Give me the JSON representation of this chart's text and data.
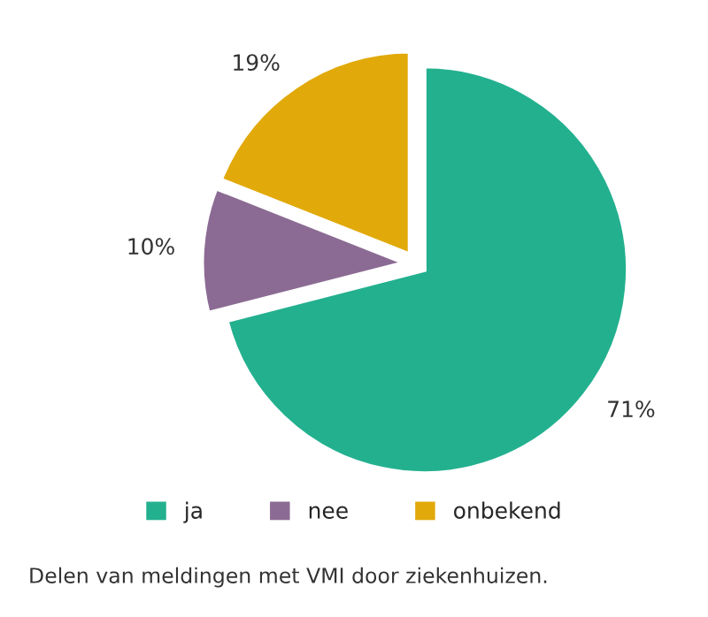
{
  "chart_data": {
    "type": "pie",
    "categories": [
      "ja",
      "nee",
      "onbekend"
    ],
    "values": [
      71,
      10,
      19
    ],
    "value_labels": [
      "71%",
      "10%",
      "19%"
    ],
    "colors": [
      "#23b08f",
      "#8b6b93",
      "#e1a90a"
    ],
    "legend": "bottom",
    "annotations": [
      "Delen van meldingen met VMI door ziekenhuizen."
    ]
  }
}
